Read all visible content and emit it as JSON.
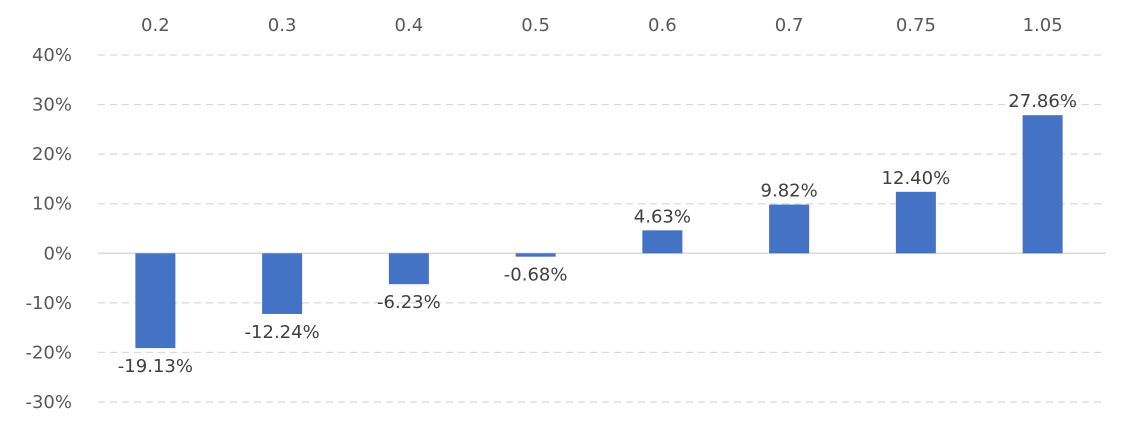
{
  "chart_data": {
    "type": "bar",
    "title": "",
    "xlabel": "",
    "ylabel": "",
    "categories": [
      "0.2",
      "0.3",
      "0.4",
      "0.5",
      "0.6",
      "0.7",
      "0.75",
      "1.05"
    ],
    "values": [
      -19.13,
      -12.24,
      -6.23,
      -0.68,
      4.63,
      9.82,
      12.4,
      27.86
    ],
    "data_labels": [
      "-19.13%",
      "-12.24%",
      "-6.23%",
      "-0.68%",
      "4.63%",
      "9.82%",
      "12.40%",
      "27.86%"
    ],
    "ylim": [
      -30,
      40
    ],
    "yticks": [
      40,
      30,
      20,
      10,
      0,
      -10,
      -20,
      -30
    ],
    "ytick_labels": [
      "40%",
      "30%",
      "20%",
      "10%",
      "0%",
      "-10%",
      "-20%",
      "-30%"
    ],
    "x_axis_position": "top",
    "grid": true,
    "legend": "none",
    "bar_color": "#4472c4",
    "grid_color": "#d9d9d9",
    "text_color": "#595959"
  }
}
